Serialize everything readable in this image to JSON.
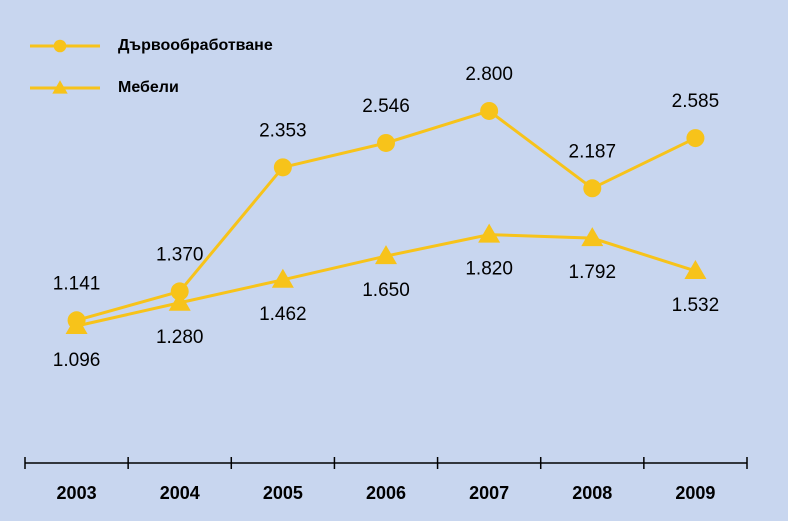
{
  "chart_data": {
    "type": "line",
    "categories": [
      "2003",
      "2004",
      "2005",
      "2006",
      "2007",
      "2008",
      "2009"
    ],
    "series": [
      {
        "name": "Дървообработване",
        "color": "#f7c31a",
        "marker": "circle",
        "values": [
          1.141,
          1.37,
          2.353,
          2.546,
          2.8,
          2.187,
          2.585
        ],
        "value_labels": [
          "1.141",
          "1.370",
          "2.353",
          "2.546",
          "2.800",
          "2.187",
          "2.585"
        ]
      },
      {
        "name": "Мебели",
        "color": "#f7c31a",
        "marker": "triangle",
        "values": [
          1.096,
          1.28,
          1.462,
          1.65,
          1.82,
          1.792,
          1.532
        ],
        "value_labels": [
          "1.096",
          "1.280",
          "1.462",
          "1.650",
          "1.820",
          "1.792",
          "1.532"
        ]
      }
    ],
    "legend": "top-left"
  }
}
